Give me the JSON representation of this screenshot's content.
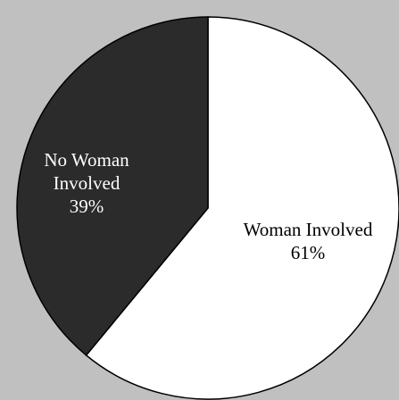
{
  "chart_data": {
    "type": "pie",
    "start_angle": "12 o'clock",
    "direction": "clockwise",
    "slices": [
      {
        "label_lines": [
          "Woman Involved"
        ],
        "value": 61,
        "value_label": "61%",
        "color": "#ffffff",
        "text_color": "#000000"
      },
      {
        "label_lines": [
          "No Woman",
          "Involved"
        ],
        "value": 39,
        "value_label": "39%",
        "color": "#2b2b2b",
        "text_color": "#ffffff"
      }
    ],
    "background_color": "#c0c0c0",
    "outline_color": "#000000",
    "legend": "none"
  }
}
